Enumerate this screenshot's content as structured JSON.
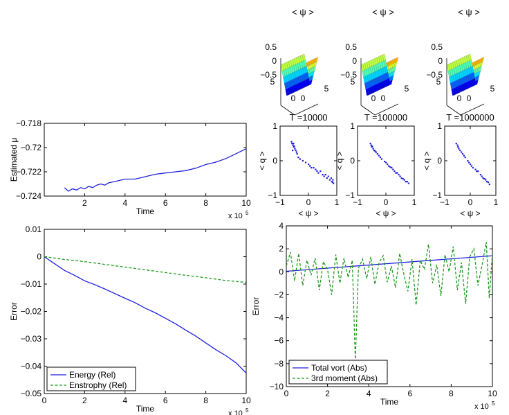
{
  "colors": {
    "blue": "#1f1fe0",
    "green": "#1e9a1e",
    "axis": "#000000"
  },
  "chart_data": [
    {
      "id": "mu",
      "type": "line",
      "title": "",
      "xlabel": "Time",
      "ylabel": "Estimated μ",
      "xlim": [
        0,
        10
      ],
      "ylim": [
        -0.724,
        -0.718
      ],
      "xticks": [
        2,
        4,
        6,
        8,
        10
      ],
      "xtick_labels": [
        "2",
        "4",
        "6",
        "8",
        "10"
      ],
      "yticks": [
        -0.724,
        -0.722,
        -0.72,
        -0.718
      ],
      "ytick_labels": [
        "−0.724",
        "−0.722",
        "−0.72",
        "−0.718"
      ],
      "x_multiplier": "x 10",
      "x_multiplier_exp": "5",
      "series": [
        {
          "name": "Estimated μ",
          "color": "blue",
          "dash": "solid",
          "x": [
            1.0,
            1.2,
            1.4,
            1.6,
            1.8,
            2.0,
            2.2,
            2.4,
            2.6,
            2.8,
            3.0,
            3.2,
            3.5,
            4.0,
            4.5,
            5.0,
            5.5,
            6.0,
            6.5,
            7.0,
            7.5,
            8.0,
            8.5,
            9.0,
            9.5,
            10.0
          ],
          "y": [
            -0.7233,
            -0.7236,
            -0.7234,
            -0.7235,
            -0.7233,
            -0.7234,
            -0.7232,
            -0.7233,
            -0.7231,
            -0.723,
            -0.7231,
            -0.7229,
            -0.7228,
            -0.7226,
            -0.7226,
            -0.7224,
            -0.7222,
            -0.7221,
            -0.722,
            -0.7219,
            -0.7217,
            -0.7214,
            -0.7212,
            -0.7209,
            -0.7205,
            -0.7201
          ]
        }
      ]
    },
    {
      "id": "err-rel",
      "type": "line",
      "title": "",
      "xlabel": "Time",
      "ylabel": "Error",
      "xlim": [
        0,
        10
      ],
      "ylim": [
        -0.05,
        0.01
      ],
      "xticks": [
        0,
        2,
        4,
        6,
        8,
        10
      ],
      "xtick_labels": [
        "0",
        "2",
        "4",
        "6",
        "8",
        "10"
      ],
      "yticks": [
        -0.05,
        -0.04,
        -0.03,
        -0.02,
        -0.01,
        0,
        0.01
      ],
      "ytick_labels": [
        "−0.05",
        "−0.04",
        "−0.03",
        "−0.02",
        "−0.01",
        "0",
        "0.01"
      ],
      "x_multiplier": "x 10",
      "x_multiplier_exp": "5",
      "legend": {
        "position": "bottom-left"
      },
      "series": [
        {
          "name": "Energy (Rel)",
          "color": "blue",
          "dash": "solid",
          "x": [
            0,
            0.5,
            1,
            1.5,
            2,
            2.5,
            3,
            3.5,
            4,
            4.5,
            5,
            5.5,
            6,
            6.5,
            7,
            7.5,
            8,
            8.5,
            9,
            9.5,
            10
          ],
          "y": [
            0,
            -0.0025,
            -0.005,
            -0.0068,
            -0.0088,
            -0.0102,
            -0.0118,
            -0.0135,
            -0.0152,
            -0.0168,
            -0.0188,
            -0.0205,
            -0.0225,
            -0.0245,
            -0.0268,
            -0.029,
            -0.0315,
            -0.034,
            -0.0362,
            -0.0388,
            -0.0425
          ]
        },
        {
          "name": "Enstrophy (Rel)",
          "color": "green",
          "dash": "dashed",
          "x": [
            0,
            1,
            2,
            3,
            4,
            5,
            6,
            7,
            8,
            9,
            10
          ],
          "y": [
            0,
            -0.001,
            -0.0018,
            -0.0028,
            -0.0038,
            -0.0048,
            -0.0058,
            -0.0068,
            -0.0077,
            -0.0087,
            -0.0094
          ]
        }
      ]
    },
    {
      "id": "err-abs",
      "type": "line",
      "title": "",
      "xlabel": "Time",
      "ylabel": "Error",
      "xlim": [
        0,
        10
      ],
      "ylim": [
        -10,
        4
      ],
      "xticks": [
        0,
        2,
        4,
        6,
        8,
        10
      ],
      "xtick_labels": [
        "0",
        "2",
        "4",
        "6",
        "8",
        "10"
      ],
      "yticks": [
        -10,
        -8,
        -6,
        -4,
        -2,
        0,
        2,
        4
      ],
      "ytick_labels": [
        "−10",
        "−8",
        "−6",
        "−4",
        "−2",
        "0",
        "2",
        "4"
      ],
      "x_multiplier": "x 10",
      "x_multiplier_exp": "5",
      "legend": {
        "position": "bottom-left"
      },
      "series": [
        {
          "name": "Total vort (Abs)",
          "color": "blue",
          "dash": "solid",
          "x": [
            0,
            10
          ],
          "y": [
            0.05,
            1.4
          ]
        },
        {
          "name": "3rd moment (Abs)",
          "color": "green",
          "dash": "dashed",
          "x": [
            0,
            0.2,
            0.4,
            0.6,
            0.8,
            1.0,
            1.2,
            1.4,
            1.6,
            1.8,
            2.0,
            2.2,
            2.4,
            2.6,
            2.8,
            3.0,
            3.2,
            3.35,
            3.5,
            3.7,
            3.9,
            4.1,
            4.3,
            4.5,
            4.7,
            4.9,
            5.1,
            5.3,
            5.5,
            5.7,
            5.9,
            6.1,
            6.3,
            6.5,
            6.7,
            6.9,
            7.1,
            7.3,
            7.5,
            7.7,
            7.9,
            8.1,
            8.3,
            8.5,
            8.7,
            8.9,
            9.1,
            9.3,
            9.5,
            9.7,
            9.85,
            10.0
          ],
          "y": [
            0.5,
            1.7,
            -0.8,
            1.6,
            -1.2,
            1.0,
            -0.3,
            1.2,
            -1.6,
            0.9,
            0.2,
            -2.0,
            1.5,
            -1.0,
            1.2,
            -0.5,
            1.0,
            -7.8,
            0.3,
            1.1,
            -0.6,
            1.3,
            -1.1,
            0.8,
            1.4,
            -0.9,
            0.5,
            -1.4,
            1.6,
            -0.2,
            -1.7,
            1.1,
            -2.9,
            1.0,
            0.2,
            2.4,
            -1.0,
            0.6,
            -2.1,
            1.5,
            0.0,
            2.2,
            -1.6,
            0.8,
            -2.8,
            1.3,
            2.0,
            -1.2,
            0.6,
            2.6,
            -2.3,
            1.6
          ]
        }
      ]
    },
    {
      "id": "scatter-1",
      "type": "scatter",
      "title": "T =10000",
      "xlabel": "< ψ >",
      "ylabel": "< q >",
      "xlim": [
        -1,
        1
      ],
      "ylim": [
        -1,
        1
      ],
      "xticks": [
        -1,
        0,
        1
      ],
      "xtick_labels": [
        "−1",
        "0",
        "1"
      ],
      "yticks": [
        -1,
        0,
        1
      ],
      "ytick_labels": [
        "−1",
        "0",
        "1"
      ],
      "series": [
        {
          "name": "points",
          "color": "blue",
          "x": [
            -0.6,
            -0.58,
            -0.55,
            -0.53,
            -0.52,
            -0.5,
            -0.48,
            -0.56,
            -0.45,
            -0.42,
            -0.4,
            -0.36,
            -0.3,
            -0.2,
            -0.1,
            0.0,
            0.05,
            0.1,
            0.18,
            0.25,
            0.3,
            0.35,
            0.42,
            0.5,
            0.55,
            0.6,
            0.65,
            0.7,
            0.75,
            0.8,
            0.82,
            0.85,
            0.88,
            0.86
          ],
          "y": [
            0.55,
            0.5,
            0.45,
            0.5,
            0.4,
            0.42,
            0.35,
            0.3,
            0.3,
            0.25,
            0.2,
            0.1,
            0.05,
            0.0,
            -0.05,
            -0.1,
            -0.15,
            -0.2,
            -0.2,
            -0.25,
            -0.3,
            -0.35,
            -0.3,
            -0.4,
            -0.45,
            -0.4,
            -0.5,
            -0.45,
            -0.55,
            -0.5,
            -0.6,
            -0.62,
            -0.65,
            -0.55
          ]
        }
      ]
    },
    {
      "id": "scatter-2",
      "type": "scatter",
      "title": "T =100000",
      "xlabel": "< ψ >",
      "ylabel": "< q >",
      "xlim": [
        -1,
        1
      ],
      "ylim": [
        -1,
        1
      ],
      "xticks": [
        -1,
        0,
        1
      ],
      "xtick_labels": [
        "−1",
        "0",
        "1"
      ],
      "yticks": [
        -1,
        0,
        1
      ],
      "ytick_labels": [
        "−1",
        "0",
        "1"
      ],
      "series": [
        {
          "name": "points",
          "color": "blue",
          "x": [
            -0.55,
            -0.52,
            -0.5,
            -0.48,
            -0.45,
            -0.42,
            -0.38,
            -0.35,
            -0.3,
            -0.25,
            -0.2,
            -0.15,
            -0.05,
            0.0,
            0.05,
            0.1,
            0.15,
            0.2,
            0.25,
            0.3,
            0.35,
            0.4,
            0.45,
            0.5,
            0.55,
            0.6,
            0.65,
            0.7,
            0.75,
            0.8
          ],
          "y": [
            0.5,
            0.45,
            0.4,
            0.42,
            0.35,
            0.3,
            0.28,
            0.25,
            0.2,
            0.15,
            0.1,
            0.05,
            -0.02,
            -0.05,
            -0.1,
            -0.15,
            -0.18,
            -0.2,
            -0.25,
            -0.3,
            -0.35,
            -0.35,
            -0.4,
            -0.45,
            -0.5,
            -0.52,
            -0.55,
            -0.6,
            -0.6,
            -0.65
          ]
        }
      ]
    },
    {
      "id": "scatter-3",
      "type": "scatter",
      "title": "T =1000000",
      "xlabel": "< ψ >",
      "ylabel": "< q >",
      "xlim": [
        -1,
        1
      ],
      "ylim": [
        -1,
        1
      ],
      "xticks": [
        -1,
        0,
        1
      ],
      "xtick_labels": [
        "−1",
        "0",
        "1"
      ],
      "yticks": [
        -1,
        0,
        1
      ],
      "ytick_labels": [
        "−1",
        "0",
        "1"
      ],
      "series": [
        {
          "name": "points",
          "color": "blue",
          "x": [
            -0.55,
            -0.5,
            -0.48,
            -0.45,
            -0.4,
            -0.35,
            -0.3,
            -0.25,
            -0.2,
            -0.1,
            -0.05,
            0.0,
            0.05,
            0.1,
            0.2,
            0.25,
            0.3,
            0.4,
            0.45,
            0.5,
            0.55,
            0.6,
            0.65,
            0.7,
            0.75
          ],
          "y": [
            0.5,
            0.45,
            0.4,
            0.35,
            0.3,
            0.25,
            0.2,
            0.15,
            0.1,
            0.0,
            -0.05,
            -0.1,
            -0.15,
            -0.2,
            -0.25,
            -0.3,
            -0.3,
            -0.4,
            -0.45,
            -0.5,
            -0.52,
            -0.55,
            -0.6,
            -0.62,
            -0.68
          ]
        }
      ]
    },
    {
      "id": "surf-1",
      "type": "surface",
      "title": "< ψ >",
      "zticks": [
        "0.5",
        "0",
        "−0.5"
      ],
      "xticks": [
        "0",
        "5"
      ],
      "yticks": [
        "0",
        "5"
      ]
    },
    {
      "id": "surf-2",
      "type": "surface",
      "title": "< ψ >",
      "zticks": [
        "0.5",
        "0",
        "−0.5"
      ],
      "xticks": [
        "0",
        "5"
      ],
      "yticks": [
        "0",
        "5"
      ]
    },
    {
      "id": "surf-3",
      "type": "surface",
      "title": "< ψ >",
      "zticks": [
        "0.5",
        "0",
        "−0.5"
      ],
      "xticks": [
        "0",
        "5"
      ],
      "yticks": [
        "0",
        "5"
      ]
    }
  ]
}
